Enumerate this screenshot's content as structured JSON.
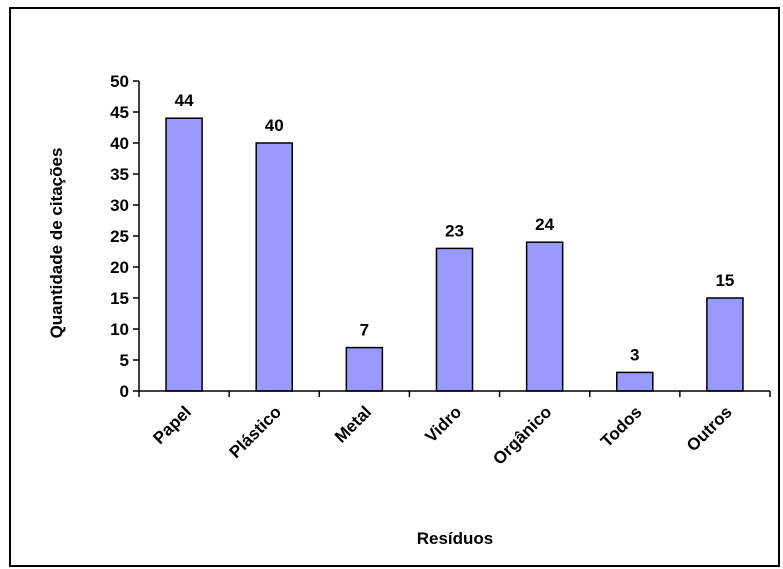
{
  "chart_data": {
    "type": "bar",
    "categories": [
      "Papel",
      "Plástico",
      "Metal",
      "Vidro",
      "Orgânico",
      "Todos",
      "Outros"
    ],
    "values": [
      44,
      40,
      7,
      23,
      24,
      3,
      15
    ],
    "data_labels": [
      "44",
      "40",
      "7",
      "23",
      "24",
      "3",
      "15"
    ],
    "xlabel": "Resíduos",
    "ylabel": "Quantidade de citações",
    "ylim": [
      0,
      50
    ],
    "yticks": [
      "0",
      "5",
      "10",
      "15",
      "20",
      "25",
      "30",
      "35",
      "40",
      "45",
      "50"
    ],
    "grid": false,
    "legend": "none",
    "bar_color": "#9999ff",
    "bar_border_color": "#000000"
  }
}
